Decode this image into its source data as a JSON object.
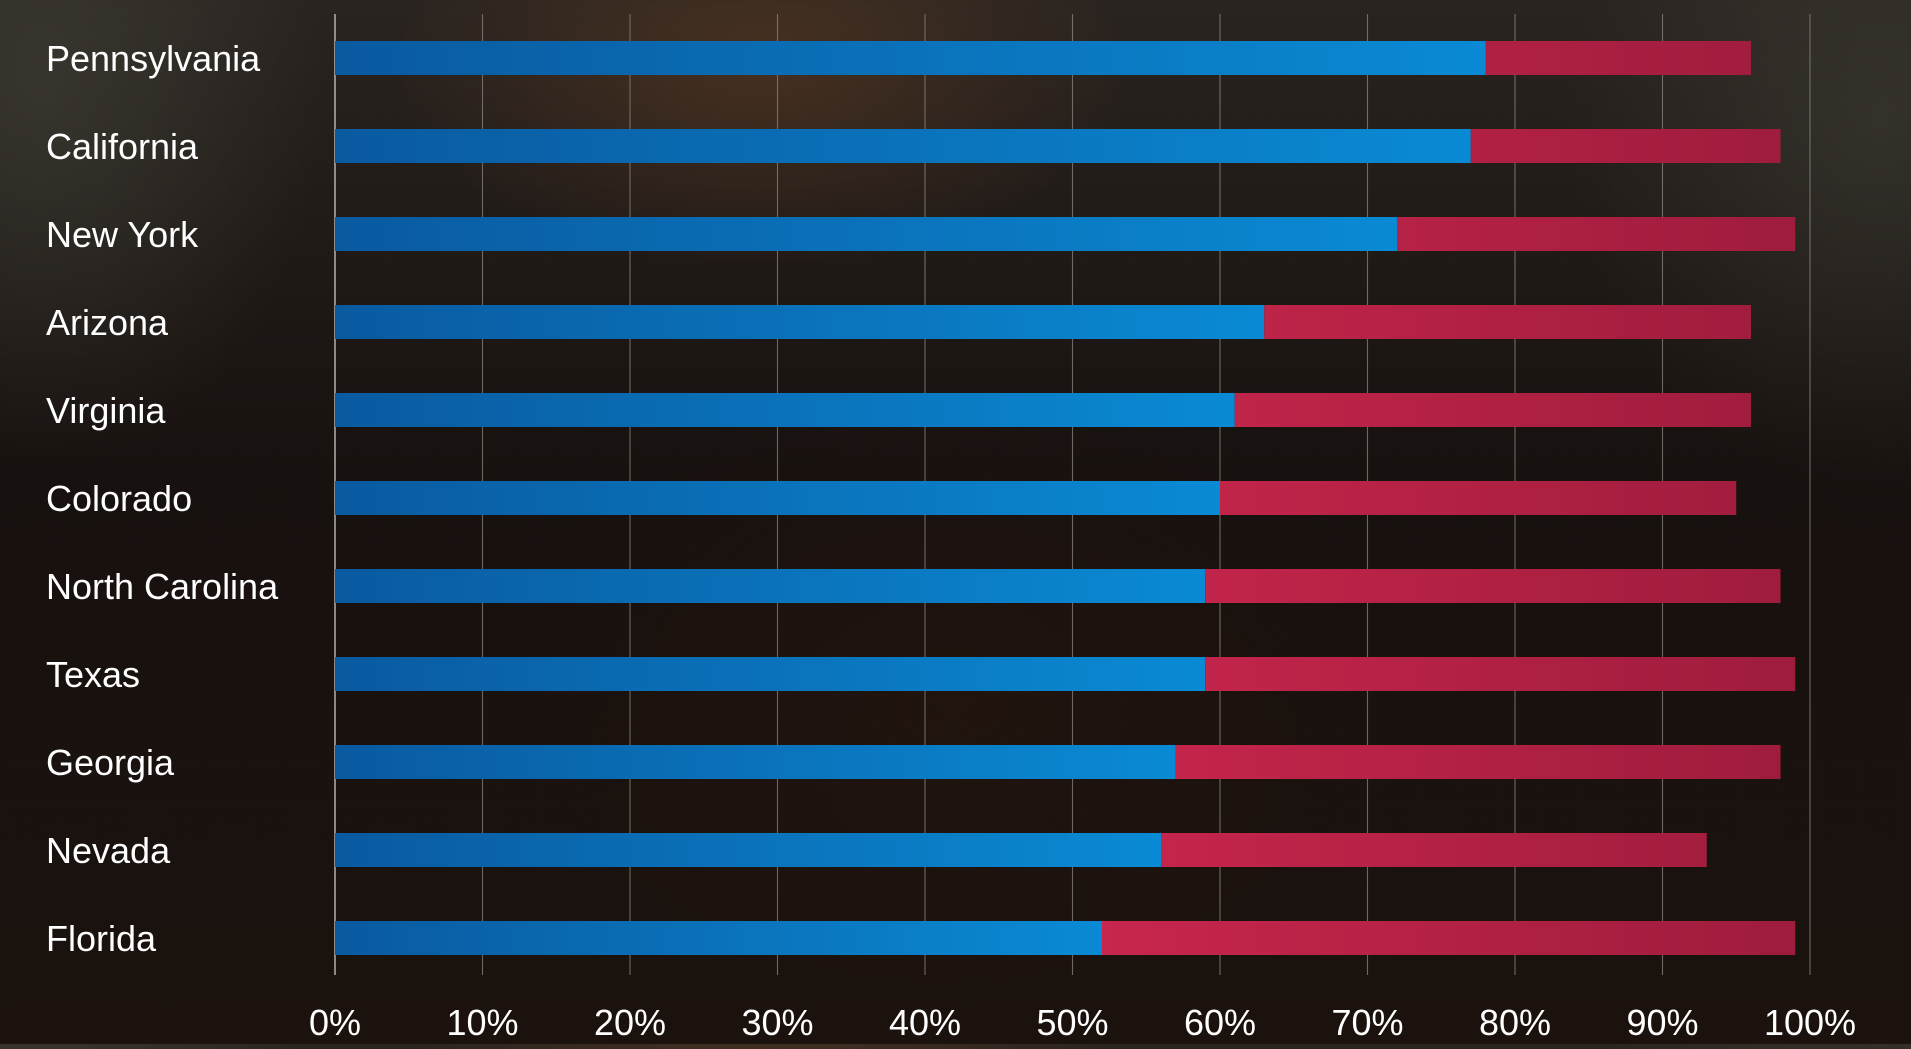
{
  "chart_data": {
    "type": "bar",
    "orientation": "horizontal",
    "stacked": true,
    "categories": [
      "Pennsylvania",
      "California",
      "New York",
      "Arizona",
      "Virginia",
      "Colorado",
      "North Carolina",
      "Texas",
      "Georgia",
      "Nevada",
      "Florida"
    ],
    "series": [
      {
        "color": "#0a6db8",
        "color_light": "#0a8ad4",
        "values": [
          78,
          77,
          72,
          63,
          61,
          60,
          59,
          59,
          57,
          56,
          52
        ]
      },
      {
        "color": "#c8264c",
        "color_dark": "#9e1c3c",
        "values": [
          18,
          21,
          27,
          33,
          35,
          35,
          39,
          40,
          41,
          37,
          47
        ]
      }
    ],
    "xlim": [
      0,
      100
    ],
    "x_ticks": [
      "0%",
      "10%",
      "20%",
      "30%",
      "40%",
      "50%",
      "60%",
      "70%",
      "80%",
      "90%",
      "100%"
    ],
    "grid": "vertical",
    "legend": "none",
    "colors": {
      "label_text": "#ffffff",
      "grid_line": "#8a8580"
    }
  }
}
